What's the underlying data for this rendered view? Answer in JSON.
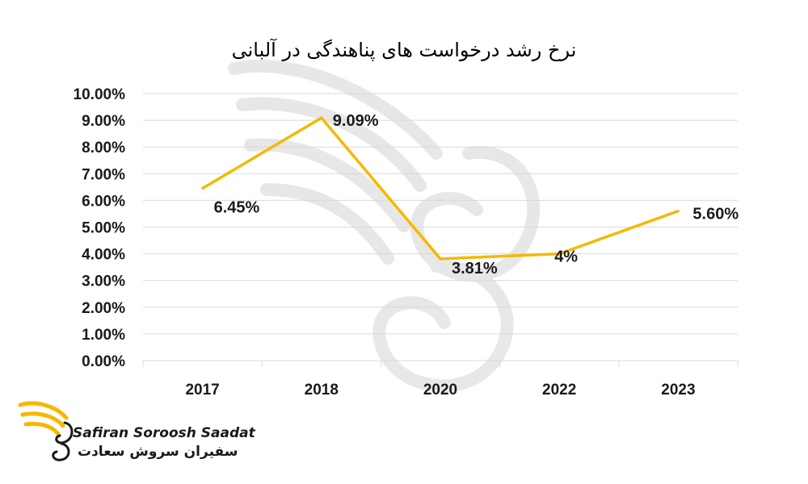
{
  "chart_data": {
    "type": "line",
    "title": "نرخ رشد درخواست های پناهندگی در آلبانی",
    "categories": [
      "2017",
      "2018",
      "2020",
      "2022",
      "2023"
    ],
    "values": [
      6.45,
      9.09,
      3.81,
      4,
      5.6
    ],
    "data_labels": [
      "6.45%",
      "9.09%",
      "3.81%",
      "4%",
      "5.60%"
    ],
    "y_ticks": [
      "0.00%",
      "1.00%",
      "2.00%",
      "3.00%",
      "4.00%",
      "5.00%",
      "6.00%",
      "7.00%",
      "8.00%",
      "9.00%",
      "10.00%"
    ],
    "ylim": [
      0,
      10
    ],
    "grid": true,
    "legend": "none",
    "line_color": "#f5b800",
    "grid_color": "#d9d9d9"
  },
  "logo": {
    "text_en": "Safiran Soroosh Saadat",
    "text_fa": "سفیران سروش سعادت",
    "accent": "#f5b800"
  }
}
